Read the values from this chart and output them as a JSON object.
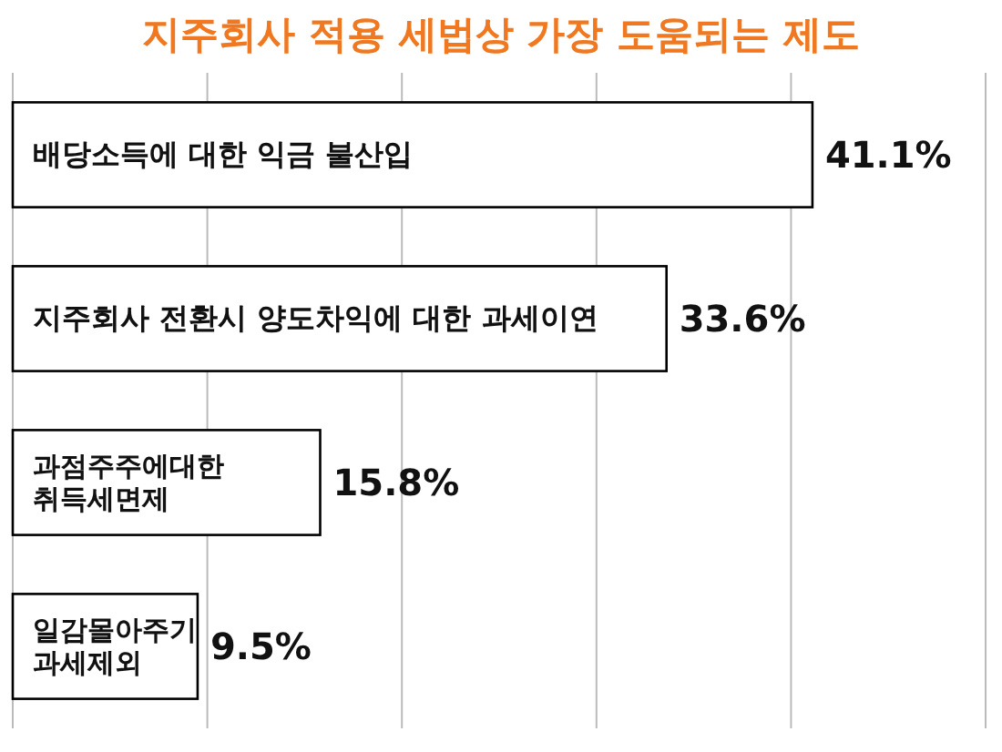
{
  "chart_data": {
    "type": "bar",
    "orientation": "horizontal",
    "title": "지주회사 적용 세법상 가장 도움되는 제도",
    "categories": [
      "배당소득에 대한 익금 불산입",
      "지주회사 전환시 양도차익에 대한 과세이연",
      "과점주주에대한\n취득세면제",
      "일감몰아주기\n과세제외"
    ],
    "values": [
      41.1,
      33.6,
      15.8,
      9.5
    ],
    "value_labels": [
      "41.1%",
      "33.6%",
      "15.8%",
      "9.5%"
    ],
    "color": "#ffffff",
    "xlim": [
      0,
      50
    ],
    "xticks": [
      {
        "value": 0,
        "label": null
      },
      {
        "value": 10,
        "label": null
      },
      {
        "value": 20,
        "label": null
      },
      {
        "value": 30,
        "label": null
      },
      {
        "value": 40,
        "label": null
      },
      {
        "value": 50,
        "label": null
      }
    ],
    "grid": "x"
  }
}
